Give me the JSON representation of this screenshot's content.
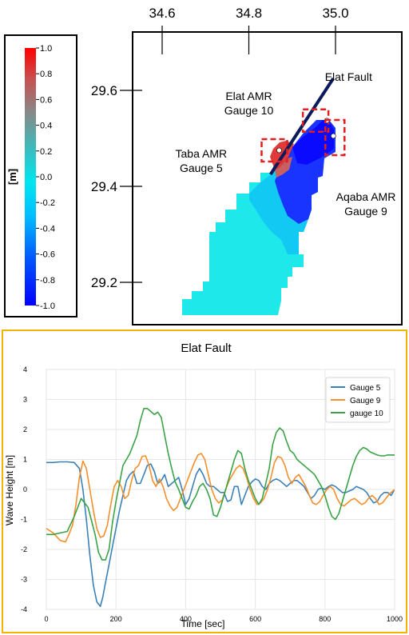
{
  "chart_data": [
    {
      "type": "heatmap",
      "xaxis": {
        "ticks": [
          "34.6",
          "34.8",
          "35.0"
        ],
        "tick_values": [
          34.6,
          34.8,
          35.0
        ],
        "position": "top"
      },
      "yaxis": {
        "ticks": [
          "29.6",
          "29.4",
          "29.2"
        ],
        "tick_values": [
          29.6,
          29.4,
          29.2
        ],
        "position": "left"
      },
      "colorbar": {
        "label": "[m]",
        "ticks": [
          "1.0",
          "0.8",
          "0.6",
          "0.4",
          "0.2",
          "0.0",
          "-0.2",
          "-0.4",
          "-0.6",
          "-0.8",
          "-1.0"
        ],
        "range": [
          -1.0,
          1.0
        ],
        "colors": [
          "#0000ff",
          "#0090ff",
          "#00e0f0",
          "#40c0c0",
          "#808080",
          "#c04040",
          "#ff0000"
        ]
      },
      "annotations": [
        {
          "text": "Elat AMR\nGauge 10",
          "lon": 34.8,
          "lat": 29.58
        },
        {
          "text": "Elat Fault",
          "lon": 35.03,
          "lat": 29.62
        },
        {
          "text": "Taba AMR\nGauge 5",
          "lon": 34.69,
          "lat": 29.46
        },
        {
          "text": "Aqaba AMR\nGauge 9",
          "lon": 35.07,
          "lat": 29.37
        }
      ],
      "gauges": [
        {
          "name": "Gauge 10",
          "lon": 34.98,
          "lat": 29.537
        },
        {
          "name": "Gauge 5",
          "lon": 34.87,
          "lat": 29.475
        },
        {
          "name": "Gauge 9",
          "lon": 34.995,
          "lat": 29.505
        }
      ],
      "fault_line": {
        "from": [
          34.85,
          29.425
        ],
        "to": [
          34.995,
          29.625
        ]
      }
    },
    {
      "type": "line",
      "title": "Elat Fault",
      "xlabel": "Time [sec]",
      "ylabel": "Wave Height [m]",
      "xlim": [
        0,
        1000
      ],
      "ylim": [
        -4,
        4
      ],
      "xticks": [
        0,
        200,
        400,
        600,
        800,
        1000
      ],
      "yticks": [
        4,
        3,
        2,
        1,
        0,
        -1,
        -2,
        -3,
        -4
      ],
      "grid": true,
      "legend": "top-right",
      "series": [
        {
          "name": "Gauge 5",
          "color": "#3b81b8",
          "x": [
            0,
            20,
            40,
            60,
            80,
            95,
            105,
            115,
            125,
            135,
            145,
            155,
            162,
            170,
            180,
            190,
            200,
            210,
            220,
            230,
            240,
            250,
            260,
            270,
            280,
            290,
            300,
            310,
            320,
            330,
            340,
            350,
            360,
            370,
            380,
            390,
            400,
            410,
            420,
            430,
            440,
            450,
            460,
            470,
            480,
            490,
            500,
            510,
            520,
            530,
            540,
            550,
            560,
            570,
            580,
            590,
            600,
            610,
            620,
            630,
            640,
            650,
            660,
            670,
            680,
            690,
            700,
            710,
            720,
            730,
            740,
            750,
            760,
            770,
            780,
            790,
            800,
            810,
            820,
            830,
            840,
            850,
            860,
            870,
            880,
            890,
            900,
            910,
            920,
            930,
            940,
            950,
            960,
            970,
            980,
            990,
            1000
          ],
          "values": [
            0.9,
            0.9,
            0.92,
            0.92,
            0.9,
            0.7,
            0.0,
            -1.0,
            -2.2,
            -3.2,
            -3.75,
            -3.9,
            -3.6,
            -3.1,
            -2.5,
            -1.9,
            -1.3,
            -0.7,
            -0.2,
            0.3,
            0.5,
            0.6,
            0.2,
            0.2,
            0.5,
            0.8,
            0.85,
            0.6,
            0.2,
            0.3,
            0.5,
            0.1,
            0.2,
            0.3,
            0.4,
            0.0,
            -0.5,
            -0.3,
            0.1,
            0.5,
            0.7,
            0.5,
            0.2,
            0.1,
            0.1,
            0.0,
            -0.1,
            -0.1,
            -0.4,
            -0.35,
            0.1,
            0.1,
            -0.5,
            -0.2,
            0.1,
            0.25,
            0.35,
            0.3,
            0.1,
            0.0,
            0.2,
            0.3,
            0.35,
            0.3,
            0.2,
            0.1,
            0.2,
            0.3,
            0.3,
            0.2,
            0.1,
            -0.1,
            -0.3,
            -0.2,
            0.0,
            0.05,
            0.0,
            0.1,
            0.15,
            0.1,
            0.0,
            -0.1,
            -0.1,
            -0.05,
            0.0,
            0.1,
            0.05,
            0.0,
            -0.1,
            -0.3,
            -0.45,
            -0.4,
            -0.2,
            -0.1,
            -0.1,
            -0.2,
            0.0
          ]
        },
        {
          "name": "Gauge 9",
          "color": "#f58f2b",
          "x": [
            0,
            20,
            40,
            55,
            65,
            75,
            85,
            95,
            105,
            115,
            125,
            135,
            145,
            155,
            165,
            175,
            185,
            195,
            205,
            215,
            225,
            235,
            245,
            255,
            265,
            275,
            285,
            295,
            305,
            315,
            325,
            335,
            345,
            355,
            365,
            375,
            385,
            395,
            405,
            415,
            425,
            435,
            445,
            455,
            465,
            475,
            485,
            495,
            505,
            515,
            525,
            535,
            545,
            555,
            565,
            575,
            585,
            595,
            605,
            615,
            625,
            635,
            645,
            655,
            665,
            675,
            685,
            695,
            705,
            715,
            725,
            735,
            745,
            755,
            765,
            775,
            785,
            795,
            805,
            815,
            825,
            835,
            845,
            855,
            865,
            875,
            885,
            895,
            905,
            915,
            925,
            935,
            945,
            955,
            965,
            975,
            985,
            1000
          ],
          "values": [
            -1.3,
            -1.45,
            -1.7,
            -1.75,
            -1.5,
            -1.2,
            -0.5,
            0.4,
            0.95,
            0.7,
            0.0,
            -0.7,
            -1.3,
            -1.6,
            -1.55,
            -1.2,
            -0.5,
            0.1,
            0.3,
            0.1,
            -0.3,
            -0.2,
            0.3,
            0.7,
            0.8,
            1.1,
            1.12,
            0.8,
            0.3,
            0.1,
            0.35,
            0.1,
            -0.3,
            -0.55,
            -0.7,
            -0.6,
            -0.3,
            0.0,
            0.3,
            0.6,
            0.9,
            1.15,
            1.2,
            1.0,
            0.5,
            0.0,
            -0.3,
            -0.45,
            -0.35,
            0.0,
            0.3,
            0.5,
            0.7,
            0.8,
            0.7,
            0.4,
            0.0,
            -0.3,
            -0.5,
            -0.45,
            -0.3,
            0.0,
            0.4,
            0.9,
            1.1,
            1.05,
            0.8,
            0.4,
            0.2,
            0.4,
            0.5,
            0.3,
            0.1,
            -0.2,
            -0.45,
            -0.5,
            -0.4,
            -0.2,
            0.0,
            0.1,
            0.0,
            -0.3,
            -0.5,
            -0.55,
            -0.45,
            -0.35,
            -0.3,
            -0.4,
            -0.5,
            -0.45,
            -0.3,
            -0.2,
            -0.3,
            -0.5,
            -0.45,
            -0.3,
            -0.15,
            0.0
          ]
        },
        {
          "name": "gauge 10",
          "color": "#3aa346",
          "x": [
            0,
            20,
            40,
            60,
            80,
            100,
            120,
            140,
            150,
            160,
            170,
            180,
            190,
            200,
            210,
            220,
            230,
            240,
            250,
            260,
            270,
            280,
            290,
            300,
            310,
            320,
            330,
            340,
            350,
            360,
            370,
            380,
            390,
            400,
            410,
            420,
            430,
            440,
            450,
            460,
            470,
            480,
            490,
            500,
            510,
            520,
            530,
            540,
            550,
            560,
            570,
            580,
            590,
            600,
            610,
            620,
            630,
            640,
            650,
            660,
            670,
            680,
            690,
            700,
            710,
            720,
            730,
            740,
            750,
            760,
            770,
            780,
            790,
            800,
            810,
            820,
            830,
            840,
            850,
            860,
            870,
            880,
            890,
            900,
            910,
            920,
            930,
            940,
            950,
            960,
            970,
            980,
            990,
            1000
          ],
          "values": [
            -1.5,
            -1.5,
            -1.45,
            -1.4,
            -0.9,
            -0.3,
            -0.6,
            -1.5,
            -2.1,
            -2.35,
            -2.35,
            -2.0,
            -1.1,
            -0.4,
            0.2,
            0.8,
            1.0,
            1.2,
            1.5,
            1.8,
            2.3,
            2.7,
            2.7,
            2.6,
            2.5,
            2.58,
            2.4,
            1.8,
            1.2,
            0.7,
            0.25,
            0.0,
            -0.3,
            -0.6,
            -0.65,
            -0.4,
            -0.2,
            0.1,
            0.2,
            0.0,
            -0.3,
            -0.85,
            -0.9,
            -0.6,
            -0.2,
            0.2,
            0.6,
            1.0,
            1.3,
            1.2,
            0.7,
            0.3,
            0.0,
            -0.3,
            -0.5,
            -0.3,
            0.2,
            0.7,
            1.5,
            1.9,
            2.05,
            1.95,
            1.6,
            1.3,
            1.2,
            1.0,
            0.9,
            0.8,
            0.7,
            0.6,
            0.5,
            0.3,
            0.1,
            -0.2,
            -0.6,
            -0.9,
            -1.0,
            -0.8,
            -0.4,
            0.0,
            0.4,
            0.8,
            1.1,
            1.3,
            1.4,
            1.35,
            1.25,
            1.2,
            1.15,
            1.12,
            1.12,
            1.15,
            1.15,
            1.15
          ]
        }
      ]
    }
  ]
}
